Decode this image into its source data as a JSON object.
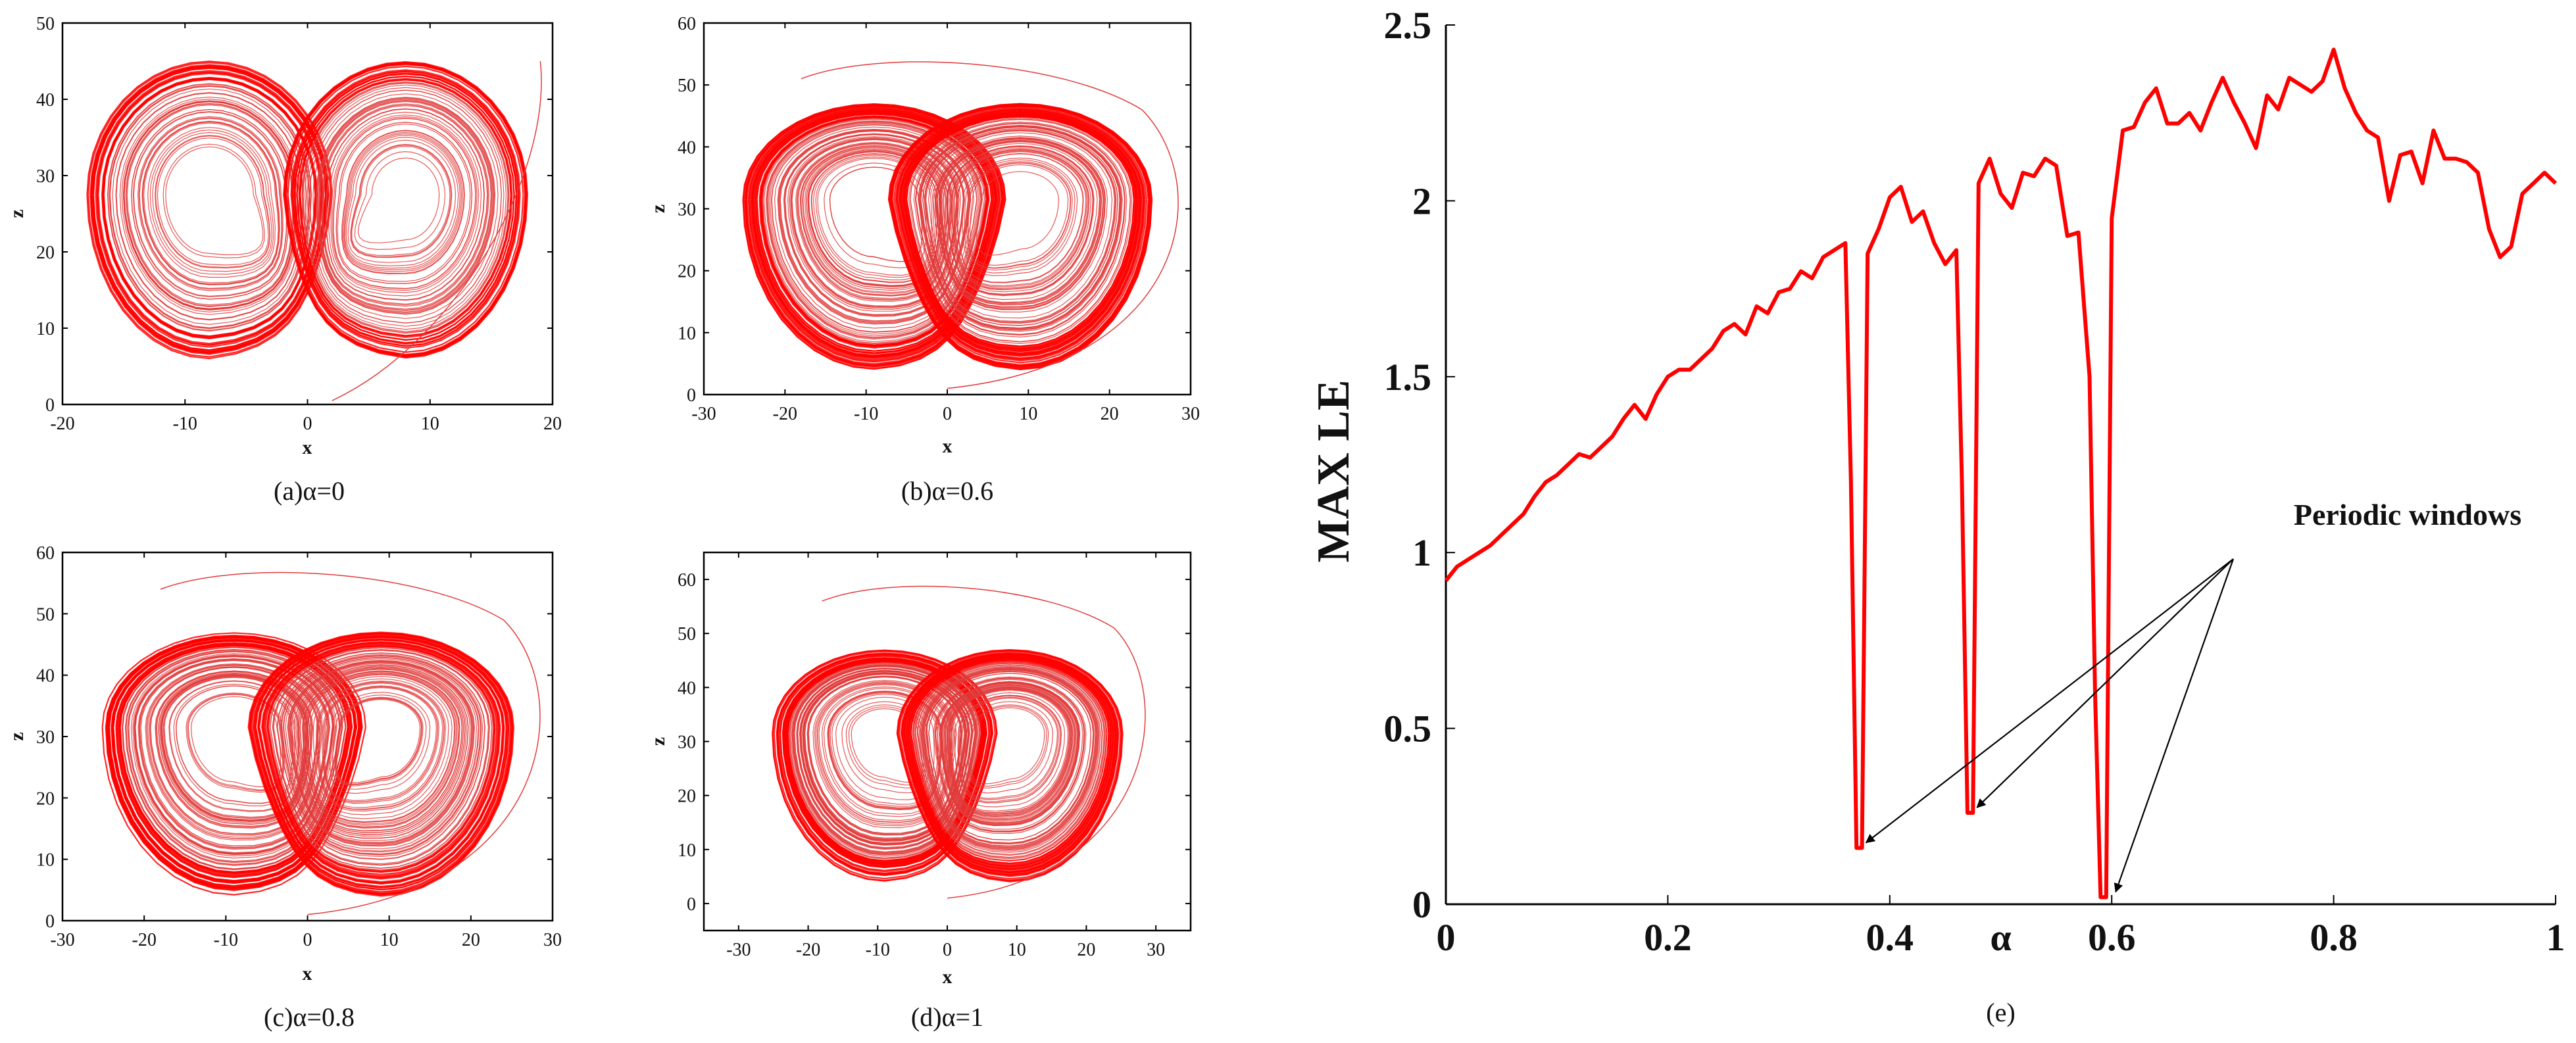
{
  "colors": {
    "series": "#ff0000",
    "thin": "#e23b3b",
    "axis": "#000000",
    "arrow": "#000000"
  },
  "chart_data": [
    {
      "type": "line",
      "panel": "a",
      "title": "",
      "caption": "(a)α=0",
      "xlabel": "x",
      "ylabel": "z",
      "xlim": [
        -20,
        20
      ],
      "ylim": [
        0,
        50
      ],
      "xticks": [
        "-20",
        "-10",
        "0",
        "10",
        "20"
      ],
      "yticks": [
        "0",
        "10",
        "20",
        "30",
        "40",
        "50"
      ],
      "series": [
        {
          "name": "trajectory",
          "kind": "phase-portrait",
          "alpha": 0
        }
      ]
    },
    {
      "type": "line",
      "panel": "b",
      "caption": "(b)α=0.6",
      "xlabel": "x",
      "ylabel": "z",
      "xlim": [
        -30,
        30
      ],
      "ylim": [
        0,
        60
      ],
      "xticks": [
        "-30",
        "-20",
        "-10",
        "0",
        "10",
        "20",
        "30"
      ],
      "yticks": [
        "0",
        "10",
        "20",
        "30",
        "40",
        "50",
        "60"
      ],
      "series": [
        {
          "name": "trajectory",
          "kind": "phase-portrait",
          "alpha": 0.6
        }
      ]
    },
    {
      "type": "line",
      "panel": "c",
      "caption": "(c)α=0.8",
      "xlabel": "x",
      "ylabel": "z",
      "xlim": [
        -30,
        30
      ],
      "ylim": [
        0,
        60
      ],
      "xticks": [
        "-30",
        "-20",
        "-10",
        "0",
        "10",
        "20",
        "30"
      ],
      "yticks": [
        "0",
        "10",
        "20",
        "30",
        "40",
        "50",
        "60"
      ],
      "series": [
        {
          "name": "trajectory",
          "kind": "phase-portrait",
          "alpha": 0.8
        }
      ]
    },
    {
      "type": "line",
      "panel": "d",
      "caption": "(d)α=1",
      "xlabel": "x",
      "ylabel": "z",
      "xlim": [
        -35,
        35
      ],
      "ylim": [
        -5,
        65
      ],
      "xticks": [
        "-30",
        "-20",
        "-10",
        "0",
        "10",
        "20",
        "30"
      ],
      "yticks": [
        "0",
        "10",
        "20",
        "30",
        "40",
        "50",
        "60"
      ],
      "series": [
        {
          "name": "trajectory",
          "kind": "phase-portrait",
          "alpha": 1
        }
      ]
    },
    {
      "type": "line",
      "panel": "e",
      "caption": "(e)",
      "xlabel": "α",
      "ylabel": "MAX LE",
      "xlim": [
        0,
        1
      ],
      "ylim": [
        0,
        2.5
      ],
      "xticks": [
        "0",
        "0.2",
        "0.4",
        "α",
        "0.6",
        "0.8",
        "1"
      ],
      "yticks": [
        "0",
        "0.5",
        "1",
        "1.5",
        "2",
        "2.5"
      ],
      "annotation": {
        "text": "Periodic windows",
        "points": [
          [
            0.375,
            0.16
          ],
          [
            0.475,
            0.26
          ],
          [
            0.6,
            0.02
          ]
        ]
      },
      "series": [
        {
          "name": "MAX LE",
          "x": [
            0,
            0.01,
            0.02,
            0.03,
            0.04,
            0.05,
            0.06,
            0.07,
            0.08,
            0.09,
            0.1,
            0.11,
            0.12,
            0.13,
            0.14,
            0.15,
            0.16,
            0.17,
            0.18,
            0.19,
            0.2,
            0.21,
            0.22,
            0.23,
            0.24,
            0.25,
            0.26,
            0.27,
            0.28,
            0.29,
            0.3,
            0.31,
            0.32,
            0.33,
            0.34,
            0.35,
            0.36,
            0.365,
            0.37,
            0.375,
            0.38,
            0.39,
            0.4,
            0.41,
            0.42,
            0.43,
            0.44,
            0.45,
            0.46,
            0.465,
            0.47,
            0.475,
            0.48,
            0.49,
            0.5,
            0.51,
            0.52,
            0.53,
            0.54,
            0.55,
            0.56,
            0.57,
            0.58,
            0.585,
            0.59,
            0.595,
            0.6,
            0.61,
            0.62,
            0.63,
            0.64,
            0.65,
            0.66,
            0.67,
            0.68,
            0.69,
            0.7,
            0.71,
            0.72,
            0.73,
            0.74,
            0.75,
            0.76,
            0.77,
            0.78,
            0.79,
            0.8,
            0.81,
            0.82,
            0.83,
            0.84,
            0.85,
            0.86,
            0.87,
            0.88,
            0.89,
            0.9,
            0.91,
            0.92,
            0.93,
            0.94,
            0.95,
            0.96,
            0.97,
            0.98,
            0.99,
            1.0
          ],
          "y": [
            0.92,
            0.96,
            0.98,
            1.0,
            1.02,
            1.05,
            1.08,
            1.11,
            1.16,
            1.2,
            1.22,
            1.25,
            1.28,
            1.27,
            1.3,
            1.33,
            1.38,
            1.42,
            1.38,
            1.45,
            1.5,
            1.52,
            1.52,
            1.55,
            1.58,
            1.63,
            1.65,
            1.62,
            1.7,
            1.68,
            1.74,
            1.75,
            1.8,
            1.78,
            1.84,
            1.86,
            1.88,
            1.2,
            0.16,
            0.16,
            1.85,
            1.92,
            2.01,
            2.04,
            1.94,
            1.97,
            1.88,
            1.82,
            1.86,
            1.2,
            0.26,
            0.26,
            2.05,
            2.12,
            2.02,
            1.98,
            2.08,
            2.07,
            2.12,
            2.1,
            1.9,
            1.91,
            1.5,
            0.6,
            0.02,
            0.02,
            1.95,
            2.2,
            2.21,
            2.28,
            2.32,
            2.22,
            2.22,
            2.25,
            2.2,
            2.28,
            2.35,
            2.28,
            2.22,
            2.15,
            2.3,
            2.26,
            2.35,
            2.33,
            2.31,
            2.34,
            2.43,
            2.32,
            2.25,
            2.2,
            2.18,
            2.0,
            2.13,
            2.14,
            2.05,
            2.2,
            2.12,
            2.12,
            2.11,
            2.08,
            1.92,
            1.84,
            1.87,
            2.02,
            2.05,
            2.08,
            2.05
          ]
        }
      ]
    }
  ]
}
